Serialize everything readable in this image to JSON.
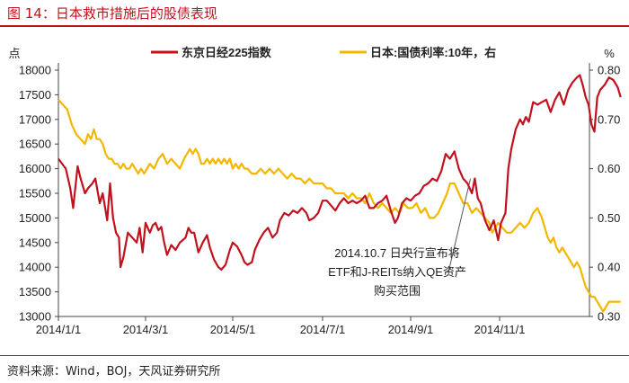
{
  "figure": {
    "title": "图 14：日本救市措施后的股债表现",
    "source": "资料来源：Wind，BOJ，天风证券研究所"
  },
  "chart_data": {
    "type": "line",
    "x_ticks": [
      "2014/1/1",
      "2014/3/1",
      "2014/5/1",
      "2014/7/1",
      "2014/9/1",
      "2014/11/1"
    ],
    "left_axis": {
      "unit": "点",
      "ylim": [
        13000,
        18000
      ],
      "ticks": [
        "13000",
        "13500",
        "14000",
        "14500",
        "15000",
        "15500",
        "16000",
        "16500",
        "17000",
        "17500",
        "18000"
      ]
    },
    "right_axis": {
      "unit": "%",
      "ylim": [
        0.3,
        0.8
      ],
      "ticks": [
        "0.30",
        "0.40",
        "0.50",
        "0.60",
        "0.70",
        "0.80"
      ]
    },
    "series": [
      {
        "name": "东京日经225指数",
        "axis": "left",
        "color": "#c0121e",
        "points": [
          [
            0,
            16200
          ],
          [
            5,
            16000
          ],
          [
            8,
            15600
          ],
          [
            10,
            15200
          ],
          [
            13,
            16050
          ],
          [
            15,
            15800
          ],
          [
            18,
            15500
          ],
          [
            20,
            15600
          ],
          [
            23,
            15700
          ],
          [
            25,
            15800
          ],
          [
            28,
            15300
          ],
          [
            30,
            15500
          ],
          [
            33,
            14950
          ],
          [
            35,
            15700
          ],
          [
            37,
            15000
          ],
          [
            39,
            14700
          ],
          [
            41,
            14600
          ],
          [
            42,
            14000
          ],
          [
            44,
            14200
          ],
          [
            47,
            14700
          ],
          [
            50,
            14600
          ],
          [
            53,
            14500
          ],
          [
            55,
            14800
          ],
          [
            57,
            14300
          ],
          [
            59,
            14900
          ],
          [
            62,
            14700
          ],
          [
            64,
            14850
          ],
          [
            66,
            14900
          ],
          [
            68,
            14750
          ],
          [
            70,
            14820
          ],
          [
            72,
            14500
          ],
          [
            74,
            14250
          ],
          [
            77,
            14450
          ],
          [
            80,
            14350
          ],
          [
            83,
            14500
          ],
          [
            87,
            14600
          ],
          [
            89,
            14800
          ],
          [
            91,
            14700
          ],
          [
            93,
            14700
          ],
          [
            96,
            14300
          ],
          [
            99,
            14500
          ],
          [
            102,
            14650
          ],
          [
            104,
            14400
          ],
          [
            107,
            14150
          ],
          [
            110,
            14000
          ],
          [
            112,
            13950
          ],
          [
            115,
            14050
          ],
          [
            118,
            14350
          ],
          [
            120,
            14500
          ],
          [
            123,
            14420
          ],
          [
            126,
            14250
          ],
          [
            128,
            14100
          ],
          [
            130,
            14050
          ],
          [
            133,
            14100
          ],
          [
            135,
            14350
          ],
          [
            138,
            14550
          ],
          [
            141,
            14700
          ],
          [
            144,
            14800
          ],
          [
            147,
            14600
          ],
          [
            150,
            14700
          ],
          [
            152,
            14950
          ],
          [
            155,
            15100
          ],
          [
            158,
            15050
          ],
          [
            161,
            15150
          ],
          [
            164,
            15100
          ],
          [
            167,
            15200
          ],
          [
            170,
            15100
          ],
          [
            172,
            14950
          ],
          [
            175,
            15000
          ],
          [
            178,
            15100
          ],
          [
            181,
            15350
          ],
          [
            184,
            15350
          ],
          [
            187,
            15250
          ],
          [
            190,
            15150
          ],
          [
            193,
            15300
          ],
          [
            196,
            15400
          ],
          [
            199,
            15300
          ],
          [
            202,
            15350
          ],
          [
            205,
            15300
          ],
          [
            208,
            15350
          ],
          [
            211,
            15450
          ],
          [
            214,
            15200
          ],
          [
            217,
            15200
          ],
          [
            220,
            15300
          ],
          [
            223,
            15350
          ],
          [
            226,
            15450
          ],
          [
            229,
            15150
          ],
          [
            232,
            14900
          ],
          [
            234,
            15000
          ],
          [
            237,
            15300
          ],
          [
            240,
            15400
          ],
          [
            243,
            15350
          ],
          [
            246,
            15450
          ],
          [
            249,
            15500
          ],
          [
            252,
            15650
          ],
          [
            255,
            15700
          ],
          [
            258,
            15800
          ],
          [
            261,
            15750
          ],
          [
            264,
            15950
          ],
          [
            267,
            16300
          ],
          [
            270,
            16200
          ],
          [
            273,
            16350
          ],
          [
            276,
            16000
          ],
          [
            279,
            15800
          ],
          [
            282,
            15700
          ],
          [
            285,
            15500
          ],
          [
            287,
            15800
          ],
          [
            289,
            15400
          ],
          [
            291,
            15300
          ],
          [
            294,
            14950
          ],
          [
            297,
            14750
          ],
          [
            300,
            14950
          ],
          [
            303,
            14550
          ],
          [
            305,
            14900
          ],
          [
            308,
            15100
          ],
          [
            310,
            16000
          ],
          [
            312,
            16400
          ],
          [
            315,
            16800
          ],
          [
            318,
            17000
          ],
          [
            320,
            16900
          ],
          [
            322,
            17050
          ],
          [
            324,
            16950
          ],
          [
            327,
            17350
          ],
          [
            330,
            17300
          ],
          [
            333,
            17350
          ],
          [
            336,
            17400
          ],
          [
            339,
            17150
          ],
          [
            342,
            17400
          ],
          [
            345,
            17550
          ],
          [
            348,
            17300
          ],
          [
            351,
            17600
          ],
          [
            354,
            17750
          ],
          [
            357,
            17850
          ],
          [
            359,
            17900
          ],
          [
            361,
            17700
          ],
          [
            363,
            17450
          ],
          [
            365,
            17300
          ],
          [
            367,
            16900
          ],
          [
            369,
            16750
          ],
          [
            371,
            17450
          ],
          [
            373,
            17600
          ],
          [
            376,
            17700
          ],
          [
            379,
            17850
          ],
          [
            382,
            17800
          ],
          [
            385,
            17650
          ],
          [
            387,
            17450
          ]
        ]
      },
      {
        "name": "日本:国债利率:10年，右",
        "axis": "right",
        "color": "#f2b701",
        "points": [
          [
            0,
            0.74
          ],
          [
            3,
            0.73
          ],
          [
            6,
            0.72
          ],
          [
            9,
            0.69
          ],
          [
            12,
            0.67
          ],
          [
            15,
            0.66
          ],
          [
            18,
            0.65
          ],
          [
            20,
            0.67
          ],
          [
            22,
            0.66
          ],
          [
            24,
            0.68
          ],
          [
            26,
            0.66
          ],
          [
            28,
            0.66
          ],
          [
            30,
            0.65
          ],
          [
            32,
            0.63
          ],
          [
            34,
            0.62
          ],
          [
            36,
            0.62
          ],
          [
            38,
            0.61
          ],
          [
            40,
            0.61
          ],
          [
            42,
            0.6
          ],
          [
            44,
            0.61
          ],
          [
            46,
            0.6
          ],
          [
            48,
            0.6
          ],
          [
            50,
            0.61
          ],
          [
            52,
            0.6
          ],
          [
            54,
            0.59
          ],
          [
            56,
            0.6
          ],
          [
            58,
            0.59
          ],
          [
            60,
            0.6
          ],
          [
            62,
            0.61
          ],
          [
            65,
            0.6
          ],
          [
            68,
            0.62
          ],
          [
            71,
            0.63
          ],
          [
            74,
            0.61
          ],
          [
            77,
            0.62
          ],
          [
            80,
            0.61
          ],
          [
            83,
            0.6
          ],
          [
            86,
            0.62
          ],
          [
            88,
            0.63
          ],
          [
            90,
            0.64
          ],
          [
            92,
            0.63
          ],
          [
            94,
            0.64
          ],
          [
            96,
            0.63
          ],
          [
            98,
            0.61
          ],
          [
            100,
            0.61
          ],
          [
            102,
            0.62
          ],
          [
            104,
            0.61
          ],
          [
            106,
            0.62
          ],
          [
            108,
            0.61
          ],
          [
            110,
            0.62
          ],
          [
            112,
            0.61
          ],
          [
            114,
            0.62
          ],
          [
            116,
            0.61
          ],
          [
            118,
            0.62
          ],
          [
            120,
            0.6
          ],
          [
            122,
            0.61
          ],
          [
            124,
            0.6
          ],
          [
            126,
            0.61
          ],
          [
            128,
            0.6
          ],
          [
            130,
            0.6
          ],
          [
            133,
            0.59
          ],
          [
            136,
            0.59
          ],
          [
            139,
            0.6
          ],
          [
            142,
            0.59
          ],
          [
            145,
            0.6
          ],
          [
            148,
            0.59
          ],
          [
            151,
            0.6
          ],
          [
            154,
            0.59
          ],
          [
            157,
            0.58
          ],
          [
            160,
            0.59
          ],
          [
            163,
            0.58
          ],
          [
            166,
            0.58
          ],
          [
            169,
            0.57
          ],
          [
            172,
            0.58
          ],
          [
            175,
            0.57
          ],
          [
            178,
            0.57
          ],
          [
            181,
            0.57
          ],
          [
            184,
            0.56
          ],
          [
            187,
            0.56
          ],
          [
            190,
            0.55
          ],
          [
            193,
            0.55
          ],
          [
            196,
            0.55
          ],
          [
            199,
            0.54
          ],
          [
            202,
            0.55
          ],
          [
            205,
            0.54
          ],
          [
            208,
            0.54
          ],
          [
            211,
            0.53
          ],
          [
            214,
            0.55
          ],
          [
            217,
            0.53
          ],
          [
            220,
            0.52
          ],
          [
            223,
            0.53
          ],
          [
            226,
            0.52
          ],
          [
            229,
            0.51
          ],
          [
            232,
            0.52
          ],
          [
            235,
            0.51
          ],
          [
            238,
            0.53
          ],
          [
            241,
            0.52
          ],
          [
            244,
            0.52
          ],
          [
            247,
            0.53
          ],
          [
            250,
            0.51
          ],
          [
            253,
            0.52
          ],
          [
            256,
            0.5
          ],
          [
            259,
            0.5
          ],
          [
            262,
            0.51
          ],
          [
            265,
            0.53
          ],
          [
            268,
            0.55
          ],
          [
            270,
            0.57
          ],
          [
            273,
            0.57
          ],
          [
            276,
            0.55
          ],
          [
            279,
            0.53
          ],
          [
            282,
            0.53
          ],
          [
            285,
            0.51
          ],
          [
            288,
            0.52
          ],
          [
            291,
            0.51
          ],
          [
            294,
            0.5
          ],
          [
            297,
            0.49
          ],
          [
            299,
            0.47
          ],
          [
            301,
            0.48
          ],
          [
            303,
            0.49
          ],
          [
            306,
            0.48
          ],
          [
            309,
            0.47
          ],
          [
            312,
            0.47
          ],
          [
            315,
            0.48
          ],
          [
            318,
            0.49
          ],
          [
            321,
            0.48
          ],
          [
            324,
            0.49
          ],
          [
            327,
            0.51
          ],
          [
            330,
            0.52
          ],
          [
            333,
            0.5
          ],
          [
            335,
            0.48
          ],
          [
            337,
            0.46
          ],
          [
            339,
            0.45
          ],
          [
            341,
            0.46
          ],
          [
            343,
            0.44
          ],
          [
            345,
            0.43
          ],
          [
            347,
            0.44
          ],
          [
            349,
            0.43
          ],
          [
            351,
            0.42
          ],
          [
            353,
            0.41
          ],
          [
            355,
            0.4
          ],
          [
            357,
            0.41
          ],
          [
            359,
            0.4
          ],
          [
            361,
            0.38
          ],
          [
            363,
            0.36
          ],
          [
            365,
            0.35
          ],
          [
            367,
            0.34
          ],
          [
            369,
            0.34
          ],
          [
            371,
            0.33
          ],
          [
            373,
            0.32
          ],
          [
            375,
            0.31
          ],
          [
            377,
            0.32
          ],
          [
            379,
            0.33
          ],
          [
            382,
            0.33
          ],
          [
            385,
            0.33
          ],
          [
            387,
            0.33
          ]
        ]
      }
    ],
    "annotation": {
      "lines": [
        "2014.10.7 日央行宣布将",
        "ETF和J-REITs纳入QE资产",
        "购买范围"
      ],
      "target_day": 284,
      "target_value": 15800
    }
  }
}
